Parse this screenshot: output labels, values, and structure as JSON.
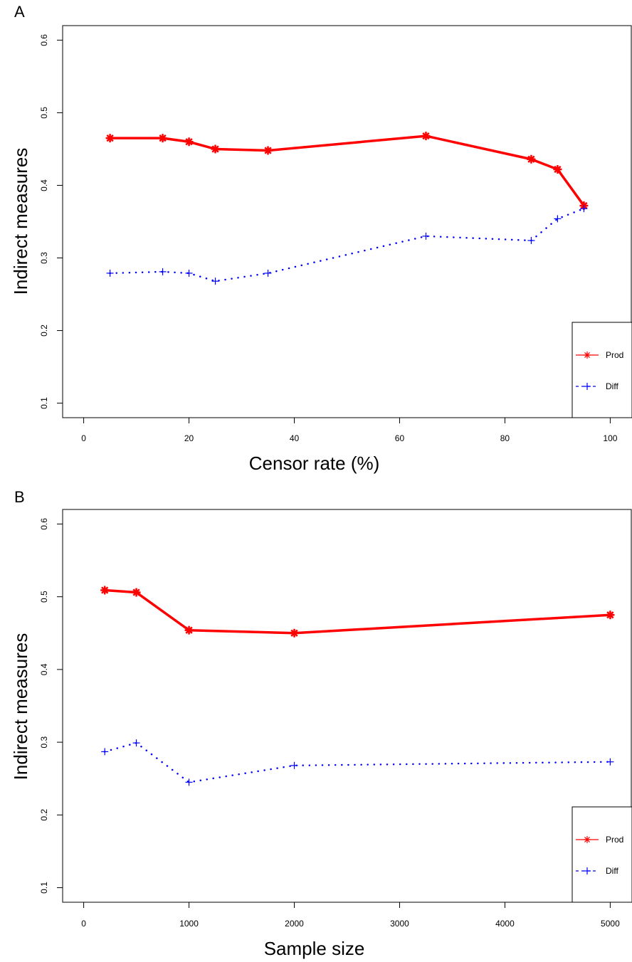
{
  "chart_data": [
    {
      "type": "line",
      "panel_label": "A",
      "xlabel": "Censor rate (%)",
      "ylabel": "Indirect measures",
      "xlim": [
        -4,
        104
      ],
      "ylim": [
        0.08,
        0.62
      ],
      "xticks": [
        0,
        20,
        40,
        60,
        80,
        100
      ],
      "yticks": [
        0.1,
        0.2,
        0.3,
        0.4,
        0.5,
        0.6
      ],
      "grid": false,
      "legend_position": "bottom-right",
      "series": [
        {
          "name": "Prod",
          "color": "#ff0000",
          "style": "solid",
          "marker": "asterisk",
          "x": [
            5,
            15,
            20,
            25,
            35,
            65,
            85,
            90,
            95
          ],
          "y": [
            0.465,
            0.465,
            0.46,
            0.45,
            0.448,
            0.468,
            0.436,
            0.422,
            0.372
          ]
        },
        {
          "name": "Diff",
          "color": "#0000ff",
          "style": "dotted",
          "marker": "plus",
          "x": [
            5,
            15,
            20,
            25,
            35,
            65,
            85,
            90,
            95
          ],
          "y": [
            0.279,
            0.281,
            0.279,
            0.268,
            0.279,
            0.33,
            0.324,
            0.354,
            0.368
          ]
        }
      ]
    },
    {
      "type": "line",
      "panel_label": "B",
      "xlabel": "Sample size",
      "ylabel": "Indirect measures",
      "xlim": [
        -200,
        5200
      ],
      "ylim": [
        0.08,
        0.62
      ],
      "xticks": [
        0,
        1000,
        2000,
        3000,
        4000,
        5000
      ],
      "yticks": [
        0.1,
        0.2,
        0.3,
        0.4,
        0.5,
        0.6
      ],
      "grid": false,
      "legend_position": "bottom-right",
      "series": [
        {
          "name": "Prod",
          "color": "#ff0000",
          "style": "solid",
          "marker": "asterisk",
          "x": [
            200,
            500,
            1000,
            2000,
            5000
          ],
          "y": [
            0.509,
            0.506,
            0.454,
            0.45,
            0.475
          ]
        },
        {
          "name": "Diff",
          "color": "#0000ff",
          "style": "dotted",
          "marker": "plus",
          "x": [
            200,
            500,
            1000,
            2000,
            5000
          ],
          "y": [
            0.287,
            0.299,
            0.245,
            0.268,
            0.273
          ]
        }
      ]
    }
  ]
}
